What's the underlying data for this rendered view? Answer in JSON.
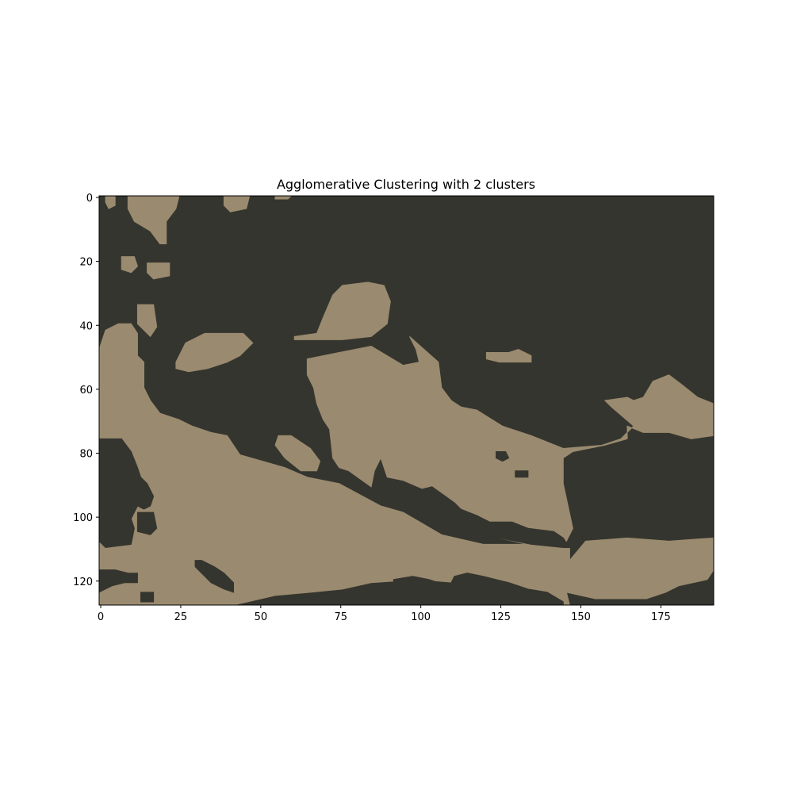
{
  "chart_data": {
    "type": "heatmap",
    "title": "Agglomerative Clustering with 2 clusters",
    "xlabel": "",
    "ylabel": "",
    "grid": false,
    "legend": "none",
    "image_width": 192,
    "image_height": 128,
    "xlim": [
      0,
      192
    ],
    "ylim": [
      128,
      0
    ],
    "x_ticks": [
      0,
      25,
      50,
      75,
      100,
      125,
      150,
      175
    ],
    "y_ticks": [
      0,
      20,
      40,
      60,
      80,
      100,
      120
    ],
    "clusters": [
      {
        "id": 0,
        "color": "#34352E"
      },
      {
        "id": 1,
        "color": "#9A8A6F"
      }
    ],
    "cluster1_regions": [
      [
        [
          9,
          0
        ],
        [
          25,
          0
        ],
        [
          24,
          4
        ],
        [
          21,
          8
        ],
        [
          21,
          15
        ],
        [
          19,
          15
        ],
        [
          16,
          11
        ],
        [
          11,
          8
        ],
        [
          9,
          4
        ]
      ],
      [
        [
          2,
          0
        ],
        [
          5,
          0
        ],
        [
          5,
          3
        ],
        [
          3,
          4
        ],
        [
          2,
          2
        ]
      ],
      [
        [
          39,
          0
        ],
        [
          47,
          0
        ],
        [
          46,
          4
        ],
        [
          41,
          5
        ],
        [
          39,
          3
        ]
      ],
      [
        [
          55,
          0
        ],
        [
          60,
          0
        ],
        [
          59,
          1
        ],
        [
          55,
          1
        ]
      ],
      [
        [
          7,
          19
        ],
        [
          11,
          19
        ],
        [
          12,
          22
        ],
        [
          10,
          24
        ],
        [
          7,
          23
        ]
      ],
      [
        [
          15,
          21
        ],
        [
          22,
          21
        ],
        [
          22,
          25
        ],
        [
          17,
          26
        ],
        [
          15,
          24
        ]
      ],
      [
        [
          12,
          34
        ],
        [
          17,
          34
        ],
        [
          18,
          41
        ],
        [
          16,
          44
        ],
        [
          12,
          40
        ]
      ],
      [
        [
          24,
          52
        ],
        [
          27,
          46
        ],
        [
          33,
          43
        ],
        [
          45,
          43
        ],
        [
          48,
          46
        ],
        [
          44,
          50
        ],
        [
          40,
          52
        ],
        [
          34,
          54
        ],
        [
          28,
          55
        ],
        [
          24,
          54
        ]
      ],
      [
        [
          61,
          44
        ],
        [
          68,
          43
        ],
        [
          70,
          38
        ],
        [
          73,
          31
        ],
        [
          76,
          28
        ],
        [
          84,
          27
        ],
        [
          89,
          28
        ],
        [
          91,
          33
        ],
        [
          90,
          40
        ],
        [
          85,
          44
        ],
        [
          76,
          45
        ],
        [
          70,
          45
        ],
        [
          61,
          45
        ]
      ],
      [
        [
          121,
          49
        ],
        [
          128,
          49
        ],
        [
          131,
          48
        ],
        [
          135,
          50
        ],
        [
          135,
          52
        ],
        [
          125,
          52
        ],
        [
          121,
          51
        ]
      ],
      [
        [
          0,
          48
        ],
        [
          2,
          42
        ],
        [
          6,
          40
        ],
        [
          10,
          40
        ],
        [
          12,
          43
        ],
        [
          12,
          50
        ],
        [
          14,
          52
        ],
        [
          14,
          60
        ],
        [
          16,
          64
        ],
        [
          19,
          68
        ],
        [
          25,
          70
        ],
        [
          29,
          72
        ],
        [
          35,
          74
        ],
        [
          40,
          75
        ],
        [
          44,
          81
        ],
        [
          58,
          85
        ],
        [
          65,
          88
        ],
        [
          75,
          90
        ],
        [
          88,
          97
        ],
        [
          95,
          99
        ],
        [
          107,
          106
        ],
        [
          120,
          109
        ],
        [
          133,
          109
        ],
        [
          145,
          108
        ],
        [
          147,
          110
        ],
        [
          147,
          114
        ],
        [
          152,
          108
        ],
        [
          165,
          107
        ],
        [
          178,
          108
        ],
        [
          192,
          107
        ],
        [
          192,
          117
        ],
        [
          190,
          120
        ],
        [
          181,
          122
        ],
        [
          177,
          124
        ],
        [
          171,
          126
        ],
        [
          155,
          126
        ],
        [
          146,
          124
        ],
        [
          147,
          128
        ],
        [
          135,
          128
        ],
        [
          130,
          126
        ],
        [
          120,
          124
        ],
        [
          112,
          121
        ],
        [
          100,
          120
        ],
        [
          85,
          121
        ],
        [
          76,
          123
        ],
        [
          66,
          124
        ],
        [
          55,
          125
        ],
        [
          42,
          128
        ],
        [
          0,
          128
        ]
      ],
      [
        [
          65,
          51
        ],
        [
          75,
          49
        ],
        [
          85,
          47
        ],
        [
          95,
          53
        ],
        [
          100,
          52
        ],
        [
          99,
          48
        ],
        [
          97,
          44
        ],
        [
          106,
          52
        ],
        [
          107,
          60
        ],
        [
          110,
          64
        ],
        [
          113,
          66
        ],
        [
          118,
          67
        ],
        [
          126,
          72
        ],
        [
          135,
          75
        ],
        [
          145,
          79
        ],
        [
          157,
          78
        ],
        [
          163,
          76
        ],
        [
          167,
          72
        ],
        [
          160,
          66
        ],
        [
          158,
          64
        ],
        [
          165,
          63
        ],
        [
          167,
          64
        ],
        [
          170,
          63
        ],
        [
          173,
          58
        ],
        [
          178,
          56
        ],
        [
          182,
          59
        ],
        [
          187,
          63
        ],
        [
          192,
          65
        ],
        [
          192,
          75
        ],
        [
          185,
          76
        ],
        [
          178,
          74
        ],
        [
          170,
          74
        ],
        [
          165,
          72
        ],
        [
          165,
          76
        ],
        [
          158,
          78
        ],
        [
          148,
          80
        ],
        [
          145,
          82
        ],
        [
          145,
          90
        ],
        [
          148,
          104
        ],
        [
          145,
          110
        ],
        [
          138,
          110
        ],
        [
          125,
          107
        ],
        [
          115,
          104
        ],
        [
          108,
          100
        ],
        [
          102,
          92
        ],
        [
          95,
          89
        ],
        [
          90,
          88
        ],
        [
          88,
          82
        ],
        [
          86,
          86
        ],
        [
          85,
          91
        ],
        [
          78,
          86
        ],
        [
          75,
          85
        ],
        [
          73,
          82
        ],
        [
          72,
          73
        ],
        [
          70,
          70
        ],
        [
          68,
          65
        ],
        [
          67,
          60
        ],
        [
          65,
          56
        ]
      ],
      [
        [
          56,
          75
        ],
        [
          60,
          75
        ],
        [
          66,
          79
        ],
        [
          69,
          83
        ],
        [
          68,
          86
        ],
        [
          63,
          86
        ],
        [
          58,
          82
        ],
        [
          55,
          78
        ]
      ]
    ],
    "cluster0_regions": [
      [
        [
          0,
          76
        ],
        [
          7,
          76
        ],
        [
          10,
          80
        ],
        [
          12,
          85
        ],
        [
          13,
          88
        ],
        [
          15,
          90
        ],
        [
          17,
          94
        ],
        [
          16,
          97
        ],
        [
          14,
          98
        ],
        [
          12,
          97
        ],
        [
          10,
          101
        ],
        [
          11,
          104
        ],
        [
          10,
          109
        ],
        [
          2,
          110
        ],
        [
          0,
          108
        ],
        [
          0,
          97
        ]
      ],
      [
        [
          12,
          99
        ],
        [
          17,
          99
        ],
        [
          18,
          104
        ],
        [
          16,
          106
        ],
        [
          12,
          105
        ]
      ],
      [
        [
          30,
          114
        ],
        [
          32,
          114
        ],
        [
          36,
          116
        ],
        [
          39,
          118
        ],
        [
          42,
          121
        ],
        [
          42,
          124
        ],
        [
          39,
          123
        ],
        [
          35,
          121
        ],
        [
          30,
          116
        ]
      ],
      [
        [
          0,
          117
        ],
        [
          5,
          117
        ],
        [
          9,
          118
        ],
        [
          12,
          118
        ],
        [
          12,
          121
        ],
        [
          8,
          121
        ],
        [
          4,
          122
        ],
        [
          0,
          124
        ]
      ],
      [
        [
          13,
          124
        ],
        [
          17,
          124
        ],
        [
          17,
          127
        ],
        [
          13,
          127
        ]
      ],
      [
        [
          100,
          92
        ],
        [
          104,
          91
        ],
        [
          111,
          96
        ],
        [
          113,
          98
        ],
        [
          118,
          100
        ],
        [
          122,
          102
        ],
        [
          129,
          102
        ],
        [
          134,
          104
        ],
        [
          142,
          105
        ],
        [
          145,
          107
        ],
        [
          147,
          110
        ],
        [
          145,
          110
        ],
        [
          135,
          109
        ],
        [
          125,
          107
        ],
        [
          115,
          105
        ],
        [
          107,
          103
        ],
        [
          103,
          98
        ],
        [
          101,
          95
        ]
      ],
      [
        [
          92,
          120
        ],
        [
          98,
          119
        ],
        [
          103,
          120
        ],
        [
          106,
          121
        ],
        [
          105,
          127
        ],
        [
          94,
          127
        ],
        [
          92,
          124
        ]
      ],
      [
        [
          111,
          119
        ],
        [
          115,
          118
        ],
        [
          120,
          119
        ],
        [
          128,
          121
        ],
        [
          134,
          123
        ],
        [
          140,
          124
        ],
        [
          145,
          127
        ],
        [
          145,
          128
        ],
        [
          110,
          128
        ],
        [
          110,
          121
        ]
      ],
      [
        [
          124,
          80
        ],
        [
          127,
          80
        ],
        [
          128,
          82
        ],
        [
          126,
          83
        ],
        [
          124,
          82
        ]
      ],
      [
        [
          130,
          86
        ],
        [
          134,
          86
        ],
        [
          134,
          88
        ],
        [
          130,
          88
        ]
      ]
    ]
  }
}
